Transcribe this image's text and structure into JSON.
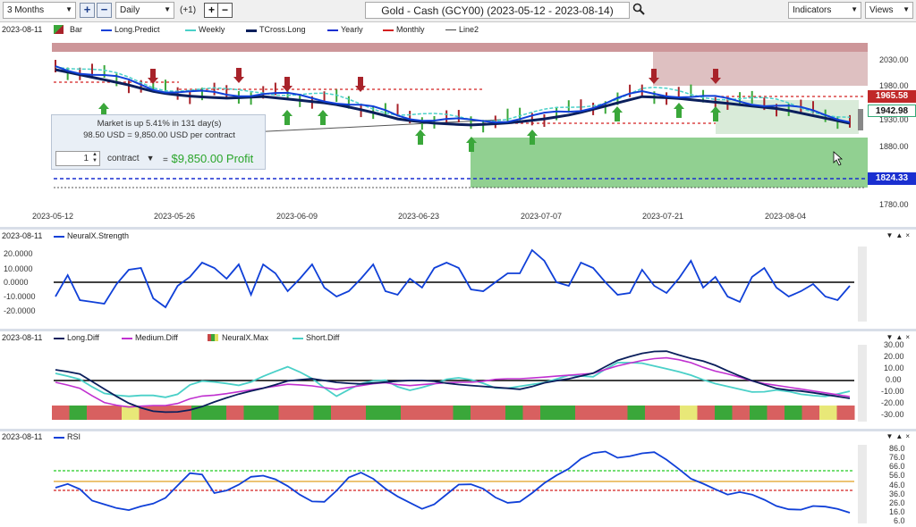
{
  "toolbar": {
    "range": "3 Months",
    "interval": "Daily",
    "offset": "(+1)",
    "title": "Gold - Cash (GCY00) (2023-05-12 - 2023-08-14)",
    "indicators": "Indicators",
    "views": "Views"
  },
  "main_panel": {
    "date": "2023-08-11",
    "legend": [
      "Bar",
      "Long.Predict",
      "Weekly",
      "TCross.Long",
      "Yearly",
      "Monthly",
      "Line2"
    ],
    "price_ticks": [
      "2030.00",
      "1980.00",
      "1930.00",
      "1880.00",
      "1780.00"
    ],
    "tags": {
      "monthly": "1965.58",
      "price": "1942.98",
      "yearly": "1824.33"
    },
    "date_ticks": [
      "2023-05-12",
      "2023-05-26",
      "2023-06-09",
      "2023-06-23",
      "2023-07-07",
      "2023-07-21",
      "2023-08-04"
    ],
    "tooltip": {
      "line1": "Market is up 5.41% in 131 day(s)",
      "line2": "98.50 USD = 9,850.00 USD per contract",
      "qty": "1",
      "unit": "contract",
      "eq": "=",
      "profit": "$9,850.00 Profit"
    }
  },
  "strength_panel": {
    "date": "2023-08-11",
    "name": "NeuralX.Strength",
    "ticks": [
      "20.0000",
      "10.0000",
      "0.0000",
      "-10.0000",
      "-20.0000"
    ]
  },
  "diff_panel": {
    "date": "2023-08-11",
    "legend": [
      "Long.Diff",
      "Medium.Diff",
      "NeuralX.Max",
      "Short.Diff"
    ],
    "ticks": [
      "30.00",
      "20.00",
      "10.00",
      "0.00",
      "-10.00",
      "-20.00",
      "-30.00"
    ]
  },
  "rsi_panel": {
    "date": "2023-08-11",
    "name": "RSI",
    "ticks": [
      "86.0",
      "76.0",
      "66.0",
      "56.0",
      "46.0",
      "36.0",
      "26.0",
      "16.0",
      "6.0"
    ]
  },
  "colors": {
    "up": "#3aa73a",
    "down": "#a8232a",
    "long_predict": "#1040d8",
    "tcross": "#0b1f5c",
    "weekly": "#4ad0c8",
    "monthly": "#d42020",
    "yearly": "#1a2fd0",
    "medium": "#c030d0"
  }
}
